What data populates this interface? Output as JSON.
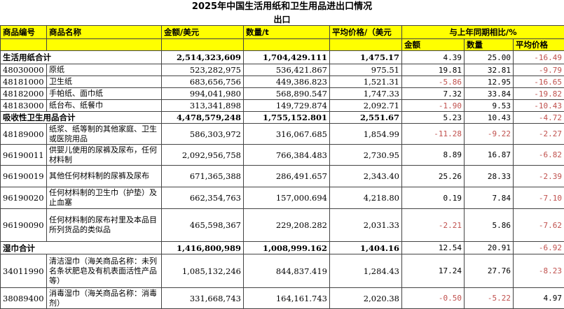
{
  "title": "2025年中国生活用纸和卫生用品进出口情况",
  "subtitle": "出口",
  "header": {
    "code": "商品编号",
    "name": "商品名称",
    "amount": "金额/美元",
    "quantity": "数量/t",
    "price": "平均价格/（美元",
    "yoy": "与上年同期相比/%",
    "yoy_amount": "金额",
    "yoy_quantity": "数量",
    "yoy_price": "平均价格"
  },
  "colors": {
    "header_bg": "#ffff00",
    "negative": "#c0504d"
  },
  "rows": [
    {
      "type": "sum",
      "code": "生活用纸合计",
      "name": "",
      "amount": "2,514,323,609",
      "quantity": "1,704,429.111",
      "price": "1,475.17",
      "yoy_amount": "4.39",
      "yoy_quantity": "25.00",
      "yoy_price": "-16.49"
    },
    {
      "type": "item",
      "code": "48030000",
      "name": "原纸",
      "amount": "523,282,975",
      "quantity": "536,421.867",
      "price": "975.51",
      "yoy_amount": "19.81",
      "yoy_quantity": "32.81",
      "yoy_price": "-9.79"
    },
    {
      "type": "item",
      "code": "48181000",
      "name": "卫生纸",
      "amount": "683,656,756",
      "quantity": "449,386.823",
      "price": "1,521.31",
      "yoy_amount": "-5.86",
      "yoy_quantity": "12.95",
      "yoy_price": "-16.65"
    },
    {
      "type": "item",
      "code": "48182000",
      "name": "手帕纸、面巾纸",
      "amount": "994,041,980",
      "quantity": "568,890.547",
      "price": "1,747.33",
      "yoy_amount": "7.32",
      "yoy_quantity": "33.84",
      "yoy_price": "-19.82"
    },
    {
      "type": "item",
      "code": "48183000",
      "name": "纸台布、纸餐巾",
      "amount": "313,341,898",
      "quantity": "149,729.874",
      "price": "2,092.71",
      "yoy_amount": "-1.90",
      "yoy_quantity": "9.53",
      "yoy_price": "-10.43"
    },
    {
      "type": "sum",
      "code": "吸收性卫生用品合计",
      "name": "",
      "amount": "4,478,579,248",
      "quantity": "1,755,152.801",
      "price": "2,551.67",
      "yoy_amount": "5.23",
      "yoy_quantity": "10.43",
      "yoy_price": "-4.72"
    },
    {
      "type": "item",
      "code": "48189000",
      "name": "纸浆、纸等制的其他家庭、卫生或医院用品",
      "amount": "586,303,972",
      "quantity": "316,067.685",
      "price": "1,854.99",
      "yoy_amount": "-11.28",
      "yoy_quantity": "-9.22",
      "yoy_price": "-2.27"
    },
    {
      "type": "item",
      "code": "96190011",
      "name": "供婴儿使用的尿裤及尿布，任何材料制",
      "amount": "2,092,956,758",
      "quantity": "766,384.483",
      "price": "2,730.95",
      "yoy_amount": "8.89",
      "yoy_quantity": "16.87",
      "yoy_price": "-6.82"
    },
    {
      "type": "item",
      "code": "96190019",
      "name": "其他任何材料制的尿裤及尿布",
      "amount": "671,365,388",
      "quantity": "286,491.657",
      "price": "2,343.40",
      "yoy_amount": "25.26",
      "yoy_quantity": "28.33",
      "yoy_price": "-2.39"
    },
    {
      "type": "item",
      "code": "96190020",
      "name": "任何材料制的卫生巾（护垫）及止血塞",
      "amount": "662,354,763",
      "quantity": "157,000.694",
      "price": "4,218.80",
      "yoy_amount": "0.19",
      "yoy_quantity": "7.84",
      "yoy_price": "-7.10"
    },
    {
      "type": "item",
      "code": "96190090",
      "name": "任何材料制的尿布衬里及本品目所列货品的类似品",
      "amount": "465,598,367",
      "quantity": "229,208.282",
      "price": "2,031.33",
      "yoy_amount": "-2.21",
      "yoy_quantity": "5.86",
      "yoy_price": "-7.62"
    },
    {
      "type": "sum",
      "code": "湿巾合计",
      "name": "",
      "amount": "1,416,800,989",
      "quantity": "1,008,999.162",
      "price": "1,404.16",
      "yoy_amount": "12.54",
      "yoy_quantity": "20.91",
      "yoy_price": "-6.92"
    },
    {
      "type": "item",
      "code": "34011990",
      "name": "清洁湿巾（海关商品名称：未列名条状肥皂及有机表面活性产品等）",
      "amount": "1,085,132,246",
      "quantity": "844,837.419",
      "price": "1,284.43",
      "yoy_amount": "17.24",
      "yoy_quantity": "27.76",
      "yoy_price": "-8.23"
    },
    {
      "type": "item",
      "code": "38089400",
      "name": "消毒湿巾（海关商品名称：消毒剂）",
      "amount": "331,668,743",
      "quantity": "164,161.743",
      "price": "2,020.38",
      "yoy_amount": "-0.50",
      "yoy_quantity": "-5.22",
      "yoy_price": "4.97"
    }
  ]
}
